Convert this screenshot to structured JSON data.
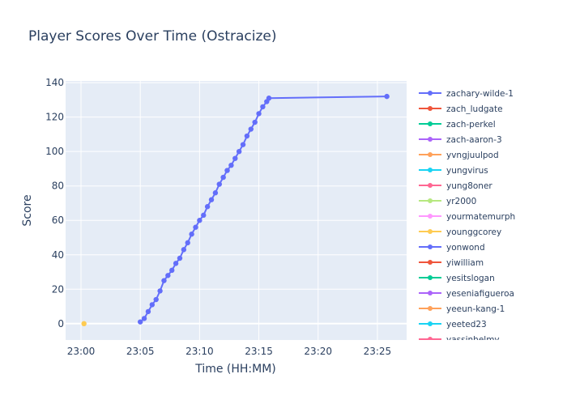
{
  "chart_data": {
    "type": "line",
    "title": "Player Scores Over Time (Ostracize)",
    "xlabel": "Time (HH:MM)",
    "ylabel": "Score",
    "xlim": [
      "22:58:42",
      "23:27:28"
    ],
    "ylim": [
      -9.5,
      141
    ],
    "x_ticks": [
      "23:00",
      "23:05",
      "23:10",
      "23:15",
      "23:20",
      "23:25"
    ],
    "y_ticks": [
      0,
      20,
      40,
      60,
      80,
      100,
      120,
      140
    ],
    "grid": true,
    "legend_placement": "right",
    "legend": [
      {
        "name": "zachary-wilde-1",
        "color": "#636efa"
      },
      {
        "name": "zach_ludgate",
        "color": "#ef553b"
      },
      {
        "name": "zach-perkel",
        "color": "#00cc96"
      },
      {
        "name": "zach-aaron-3",
        "color": "#ab63fa"
      },
      {
        "name": "yvngjuulpod",
        "color": "#ffa15a"
      },
      {
        "name": "yungvirus",
        "color": "#19d3f3"
      },
      {
        "name": "yung8oner",
        "color": "#ff6692"
      },
      {
        "name": "yr2000",
        "color": "#b6e880"
      },
      {
        "name": "yourmatemurph",
        "color": "#ff97ff"
      },
      {
        "name": "younggcorey",
        "color": "#fecb52"
      },
      {
        "name": "yonwond",
        "color": "#636efa"
      },
      {
        "name": "yiwilliam",
        "color": "#ef553b"
      },
      {
        "name": "yesitslogan",
        "color": "#00cc96"
      },
      {
        "name": "yeseniafigueroa",
        "color": "#ab63fa"
      },
      {
        "name": "yeeun-kang-1",
        "color": "#ffa15a"
      },
      {
        "name": "yeeted23",
        "color": "#19d3f3"
      },
      {
        "name": "yassinhelmy",
        "color": "#ff6692"
      }
    ],
    "series": [
      {
        "name": "zachary-wilde-1",
        "color": "#636efa",
        "points": [
          [
            "23:05:00",
            1
          ],
          [
            "23:05:20",
            3
          ],
          [
            "23:05:40",
            7
          ],
          [
            "23:06:00",
            11
          ],
          [
            "23:06:20",
            14
          ],
          [
            "23:06:40",
            19
          ],
          [
            "23:07:00",
            25
          ],
          [
            "23:07:20",
            28
          ],
          [
            "23:07:40",
            31
          ],
          [
            "23:08:00",
            35
          ],
          [
            "23:08:20",
            38
          ],
          [
            "23:08:40",
            43
          ],
          [
            "23:09:00",
            47
          ],
          [
            "23:09:20",
            52
          ],
          [
            "23:09:40",
            56
          ],
          [
            "23:10:00",
            60
          ],
          [
            "23:10:20",
            63
          ],
          [
            "23:10:40",
            68
          ],
          [
            "23:11:00",
            72
          ],
          [
            "23:11:20",
            76
          ],
          [
            "23:11:40",
            81
          ],
          [
            "23:12:00",
            85
          ],
          [
            "23:12:20",
            89
          ],
          [
            "23:12:40",
            92
          ],
          [
            "23:13:00",
            96
          ],
          [
            "23:13:20",
            100
          ],
          [
            "23:13:40",
            104
          ],
          [
            "23:14:00",
            109
          ],
          [
            "23:14:20",
            113
          ],
          [
            "23:14:40",
            117
          ],
          [
            "23:15:00",
            122
          ],
          [
            "23:15:20",
            126
          ],
          [
            "23:15:40",
            129
          ],
          [
            "23:15:51",
            131
          ],
          [
            "23:25:48",
            132
          ]
        ]
      },
      {
        "name": "younggcorey",
        "color": "#fecb52",
        "points": [
          [
            "23:00:15",
            0
          ]
        ]
      }
    ]
  }
}
